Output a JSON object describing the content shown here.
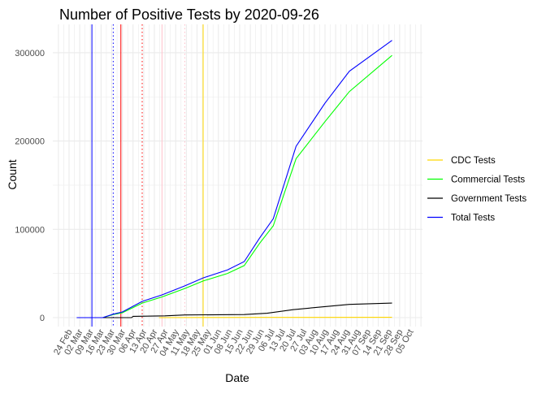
{
  "chart_data": {
    "type": "line",
    "title": "Number of Positive Tests by  2020-09-26",
    "xlabel": "Date",
    "ylabel": "Count",
    "x_start": "2020-02-24",
    "x_end": "2020-10-05",
    "ylim": [
      -12000,
      330000
    ],
    "yticks": [
      0,
      100000,
      200000,
      300000
    ],
    "ytick_labels": [
      "0",
      "100000",
      "200000",
      "300000"
    ],
    "xtick_labels": [
      "24 Feb",
      "02 Mar",
      "09 Mar",
      "16 Mar",
      "23 Mar",
      "30 Mar",
      "06 Apr",
      "13 Apr",
      "20 Apr",
      "27 Apr",
      "04 May",
      "11 May",
      "18 May",
      "25 May",
      "01 Jun",
      "08 Jun",
      "15 Jun",
      "22 Jun",
      "29 Jun",
      "06 Jul",
      "13 Jul",
      "20 Jul",
      "27 Jul",
      "03 Aug",
      "10 Aug",
      "17 Aug",
      "24 Aug",
      "31 Aug",
      "07 Sep",
      "14 Sep",
      "21 Sep",
      "28 Sep",
      "05 Oct"
    ],
    "grid": true,
    "legend_position": "right",
    "series": [
      {
        "name": "CDC Tests",
        "color": "#FFD700",
        "points": [
          [
            "2020-04-23",
            0
          ],
          [
            "2020-05-22",
            200
          ],
          [
            "2020-07-01",
            300
          ],
          [
            "2020-09-23",
            400
          ]
        ]
      },
      {
        "name": "Commercial Tests",
        "color": "#00FF00",
        "points": [
          [
            "2020-03-10",
            0
          ],
          [
            "2020-03-17",
            0
          ],
          [
            "2020-03-24",
            3500
          ],
          [
            "2020-03-30",
            5500
          ],
          [
            "2020-04-12",
            16500
          ],
          [
            "2020-04-25",
            23500
          ],
          [
            "2020-05-10",
            33000
          ],
          [
            "2020-05-22",
            41500
          ],
          [
            "2020-06-07",
            50000
          ],
          [
            "2020-06-18",
            59000
          ],
          [
            "2020-06-28",
            84000
          ],
          [
            "2020-07-07",
            104000
          ],
          [
            "2020-07-22",
            180000
          ],
          [
            "2020-08-10",
            222000
          ],
          [
            "2020-08-26",
            256000
          ],
          [
            "2020-09-23",
            297000
          ]
        ]
      },
      {
        "name": "Government Tests",
        "color": "#000000",
        "points": [
          [
            "2020-03-17",
            0
          ],
          [
            "2020-04-05",
            0
          ],
          [
            "2020-04-06",
            1500
          ],
          [
            "2020-04-27",
            2000
          ],
          [
            "2020-05-10",
            3000
          ],
          [
            "2020-06-18",
            3500
          ],
          [
            "2020-07-03",
            5000
          ],
          [
            "2020-07-20",
            9000
          ],
          [
            "2020-08-10",
            12500
          ],
          [
            "2020-08-26",
            15000
          ],
          [
            "2020-09-23",
            16500
          ]
        ]
      },
      {
        "name": "Total Tests",
        "color": "#0000FF",
        "points": [
          [
            "2020-02-29",
            0
          ],
          [
            "2020-03-17",
            0
          ],
          [
            "2020-03-24",
            4000
          ],
          [
            "2020-03-30",
            6400
          ],
          [
            "2020-04-12",
            18400
          ],
          [
            "2020-04-25",
            25800
          ],
          [
            "2020-05-10",
            36000
          ],
          [
            "2020-05-22",
            45000
          ],
          [
            "2020-06-07",
            54000
          ],
          [
            "2020-06-18",
            63500
          ],
          [
            "2020-06-28",
            90000
          ],
          [
            "2020-07-07",
            112000
          ],
          [
            "2020-07-22",
            194000
          ],
          [
            "2020-08-10",
            243000
          ],
          [
            "2020-08-26",
            279000
          ],
          [
            "2020-09-23",
            314000
          ]
        ]
      }
    ],
    "vlines": [
      {
        "date": "2020-03-10",
        "color": "#0000FF",
        "style": "solid"
      },
      {
        "date": "2020-03-24",
        "color": "#0000FF",
        "style": "dotted"
      },
      {
        "date": "2020-03-29",
        "color": "#FF0000",
        "style": "solid"
      },
      {
        "date": "2020-04-12",
        "color": "#FF0000",
        "style": "dotted"
      },
      {
        "date": "2020-04-25",
        "color": "#FFC0CB",
        "style": "solid"
      },
      {
        "date": "2020-05-10",
        "color": "#FFC0CB",
        "style": "dotted"
      },
      {
        "date": "2020-05-22",
        "color": "#FFD700",
        "style": "solid"
      }
    ]
  }
}
